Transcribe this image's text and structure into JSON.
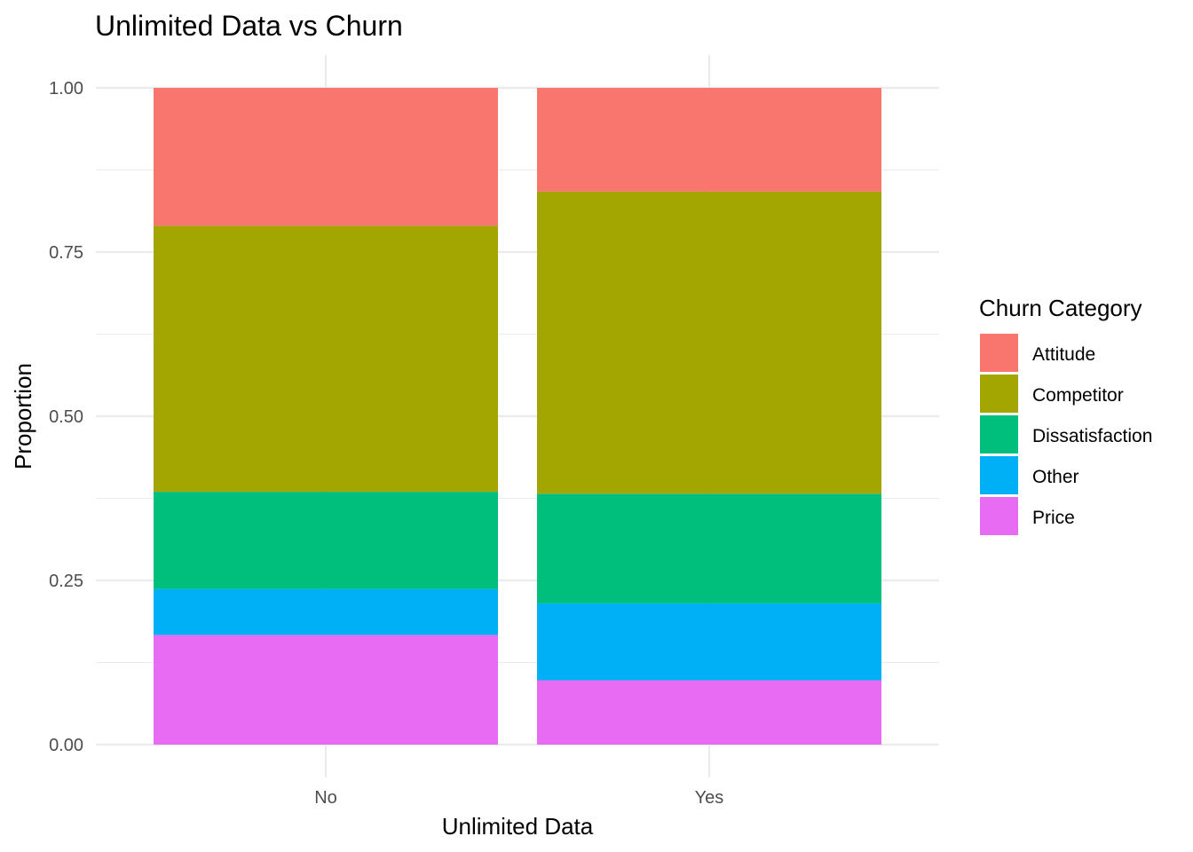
{
  "chart_data": {
    "type": "bar",
    "stacked": true,
    "title": "Unlimited Data vs Churn",
    "xlabel": "Unlimited Data",
    "ylabel": "Proportion",
    "categories": [
      "No",
      "Yes"
    ],
    "ylim": [
      0,
      1
    ],
    "yticks": [
      "0.00",
      "0.25",
      "0.50",
      "0.75",
      "1.00"
    ],
    "ytick_values": [
      0,
      0.25,
      0.5,
      0.75,
      1.0
    ],
    "grid": true,
    "legend": {
      "title": "Churn Category",
      "position": "right"
    },
    "series": [
      {
        "name": "Attitude",
        "color": "#F8766D",
        "values": [
          0.21,
          0.158
        ]
      },
      {
        "name": "Competitor",
        "color": "#A3A500",
        "values": [
          0.405,
          0.46
        ]
      },
      {
        "name": "Dissatisfaction",
        "color": "#00BF7D",
        "values": [
          0.148,
          0.167
        ]
      },
      {
        "name": "Other",
        "color": "#00B0F6",
        "values": [
          0.07,
          0.117
        ]
      },
      {
        "name": "Price",
        "color": "#E76BF3",
        "values": [
          0.167,
          0.098
        ]
      }
    ]
  }
}
